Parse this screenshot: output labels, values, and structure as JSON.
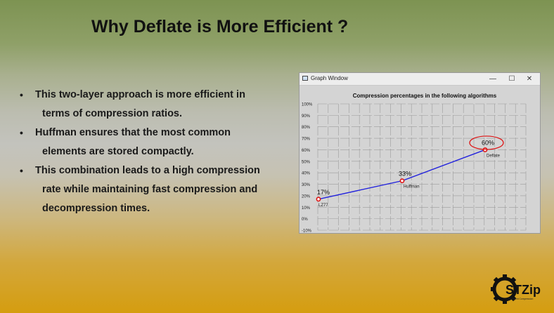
{
  "slide": {
    "title": "Why Deflate is More Efficient ?",
    "bullets": [
      {
        "line1": "This two-layer approach is more efficient in",
        "line2": "terms of compression ratios."
      },
      {
        "line1": "Huffman ensures that the most common",
        "line2": "elements are stored compactly."
      },
      {
        "line1": "This combination leads to a high compression",
        "line2": "rate while maintaining fast compression and",
        "line3": "decompression times."
      }
    ]
  },
  "window": {
    "title": "Graph Window",
    "controls": {
      "minimize": "—",
      "maximize": "☐",
      "close": "✕"
    }
  },
  "chart_data": {
    "type": "line",
    "title": "Compression percentages in the following algorithms",
    "y_ticks": [
      "100%",
      "90%",
      "80%",
      "70%",
      "60%",
      "50%",
      "40%",
      "30%",
      "20%",
      "10%",
      "0%",
      "-10%"
    ],
    "ylim": [
      -10,
      100
    ],
    "grid": true,
    "line_color": "#2222dd",
    "marker_color": "#dd1111",
    "points": [
      {
        "label": "LZ77",
        "value": 17,
        "value_label": "17%"
      },
      {
        "label": "Huffman",
        "value": 33,
        "value_label": "33%"
      },
      {
        "label": "Deflate",
        "value": 60,
        "value_label": "60%",
        "highlight": true
      }
    ]
  },
  "logo": {
    "text": "STZip",
    "subtext": "Intelligent Compression"
  }
}
